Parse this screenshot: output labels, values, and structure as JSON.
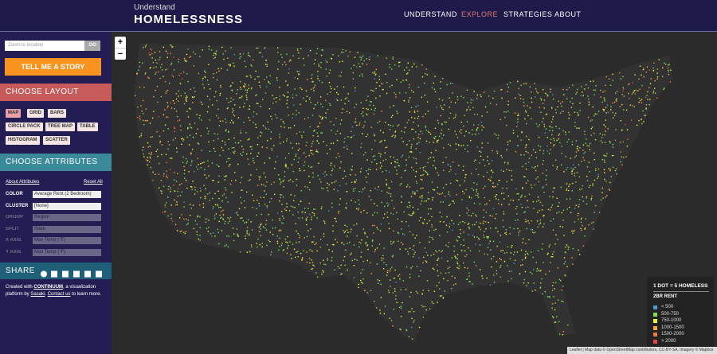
{
  "header": {
    "title_small": "Understand",
    "title": "HOMELESSNESS",
    "nav": [
      "UNDERSTAND",
      "EXPLORE",
      "STRATEGIES",
      "ABOUT"
    ]
  },
  "sidebar": {
    "search_placeholder": "Zoom to location",
    "search_button": "GO",
    "story_button": "TELL ME A STORY",
    "layout_heading": "CHOOSE LAYOUT",
    "layouts": [
      "MAP",
      "GRID",
      "BARS",
      "CIRCLE PACK",
      "TREE MAP",
      "TABLE",
      "HISTOGRAM",
      "SCATTER"
    ],
    "attributes_heading": "CHOOSE ATTRIBUTES",
    "about_attributes": "About Attributes",
    "reset": "Reset All",
    "attributes": [
      {
        "label": "COLOR",
        "value": "Average Rent (2 Bedroom)"
      },
      {
        "label": "CLUSTER",
        "value": "[None]"
      },
      {
        "label": "GROUP",
        "value": "Region"
      },
      {
        "label": "SPLIT",
        "value": "State"
      },
      {
        "label": "X AXIS",
        "value": "Max Temp (°F)"
      },
      {
        "label": "Y AXIS",
        "value": "Max Temp (°F)"
      }
    ],
    "share_heading": "SHARE",
    "credit": [
      "Created with ",
      "CONTINUUM",
      ", a visualization platform by ",
      "Sasaki",
      ". ",
      "Contact us",
      " to learn more."
    ]
  },
  "map": {
    "zoom_in": "+",
    "zoom_out": "−",
    "legend": {
      "title": "1 DOT = 5 HOMELESS",
      "subtitle": "2BR RENT",
      "items": [
        {
          "label": "< 500",
          "color": "#4a9ad0"
        },
        {
          "label": "500-750",
          "color": "#7ee05a"
        },
        {
          "label": "750-1000",
          "color": "#eef03a"
        },
        {
          "label": "1000-1500",
          "color": "#f7a640"
        },
        {
          "label": "1500-2000",
          "color": "#f07840"
        },
        {
          "label": "> 2000",
          "color": "#e04848"
        }
      ]
    },
    "attribution": "Leaflet | Map data © OpenStreetMap contributors, CC-BY-SA, Imagery © Mapbox"
  }
}
